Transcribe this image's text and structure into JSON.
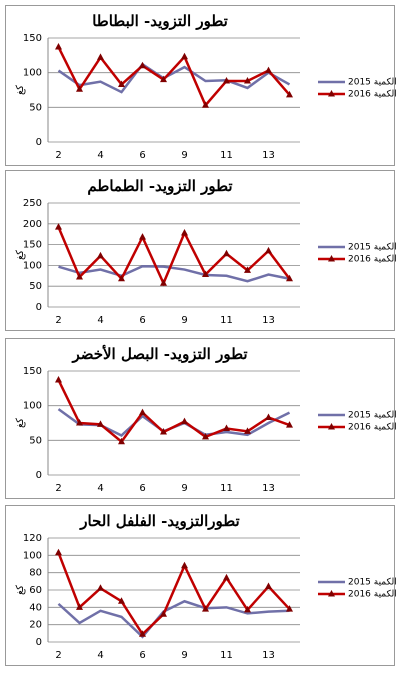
{
  "chart_data": [
    {
      "type": "line",
      "title": "تطور التزويد- البطاطا",
      "y_label": "كغ",
      "categories": [
        "2",
        null,
        "4",
        null,
        "6",
        null,
        "9",
        null,
        "11",
        null,
        "13",
        null
      ],
      "series": [
        {
          "name": "الكمية 2015",
          "color": "#7070a8",
          "values": [
            103,
            82,
            87,
            72,
            112,
            92,
            108,
            88,
            89,
            78,
            100,
            83
          ]
        },
        {
          "name": "الكمية 2016",
          "color": "#c00000",
          "values": [
            137,
            76,
            122,
            83,
            110,
            90,
            123,
            53,
            88,
            88,
            103,
            68
          ]
        }
      ],
      "ylim": [
        0,
        150
      ],
      "yticks": [
        0,
        50,
        100,
        150
      ],
      "grid": true,
      "legend": "right"
    },
    {
      "type": "line",
      "title": "تطور التزويد- الطماطم",
      "y_label": "كغ",
      "categories": [
        "2",
        null,
        "4",
        null,
        "6",
        null,
        "9",
        null,
        "11",
        null,
        "13",
        null
      ],
      "series": [
        {
          "name": "الكمية 2015",
          "color": "#7070a8",
          "values": [
            97,
            82,
            90,
            75,
            98,
            97,
            90,
            77,
            75,
            62,
            78,
            68
          ]
        },
        {
          "name": "الكمية 2016",
          "color": "#c00000",
          "values": [
            192,
            72,
            123,
            68,
            168,
            57,
            178,
            78,
            128,
            88,
            135,
            68
          ]
        }
      ],
      "ylim": [
        0,
        250
      ],
      "yticks": [
        0,
        50,
        100,
        150,
        200,
        250
      ],
      "grid": true,
      "legend": "right"
    },
    {
      "type": "line",
      "title": "تطور التزويد- البصل الأخضر",
      "y_label": "كغ",
      "categories": [
        "2",
        null,
        "4",
        null,
        "6",
        null,
        "9",
        null,
        "11",
        null,
        "13",
        null
      ],
      "series": [
        {
          "name": "الكمية 2015",
          "color": "#7070a8",
          "values": [
            95,
            73,
            72,
            57,
            85,
            63,
            75,
            58,
            62,
            58,
            75,
            90
          ]
        },
        {
          "name": "الكمية 2016",
          "color": "#c00000",
          "values": [
            137,
            75,
            73,
            48,
            90,
            62,
            77,
            55,
            67,
            63,
            83,
            72
          ]
        }
      ],
      "ylim": [
        0,
        150
      ],
      "yticks": [
        0,
        50,
        100,
        150
      ],
      "grid": true,
      "legend": "right"
    },
    {
      "type": "line",
      "title": "تطورالتزويد- الفلفل الحار",
      "y_label": "كغ",
      "categories": [
        "2",
        null,
        "4",
        null,
        "6",
        null,
        "9",
        null,
        "11",
        null,
        "13",
        null
      ],
      "series": [
        {
          "name": "الكمية 2015",
          "color": "#7070a8",
          "values": [
            44,
            22,
            36,
            29,
            6,
            35,
            47,
            39,
            40,
            33,
            35,
            36
          ]
        },
        {
          "name": "الكمية 2016",
          "color": "#c00000",
          "values": [
            103,
            40,
            62,
            47,
            9,
            32,
            88,
            38,
            74,
            37,
            64,
            38
          ]
        }
      ],
      "ylim": [
        0,
        120
      ],
      "yticks": [
        0,
        20,
        40,
        60,
        80,
        100,
        120
      ],
      "grid": true,
      "legend": "right"
    }
  ]
}
